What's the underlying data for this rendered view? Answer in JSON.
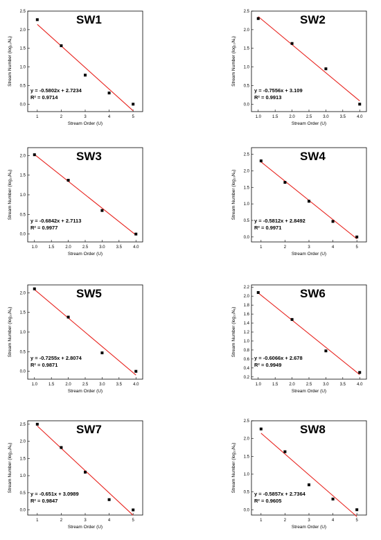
{
  "chart_data": [
    {
      "type": "scatter",
      "title": "SW1",
      "xlabel": "Stream Order (U)",
      "ylabel": "Stream Number (log₁₀Nᵤ)",
      "x": [
        1,
        2,
        3,
        4,
        5
      ],
      "y": [
        2.27,
        1.57,
        0.78,
        0.3,
        0.0
      ],
      "xticks": [
        "1",
        "2",
        "3",
        "4",
        "5"
      ],
      "yticks": [
        "0.0",
        "0.5",
        "1.0",
        "1.5",
        "2.0",
        "2.5"
      ],
      "xlim": [
        0.6,
        5.4
      ],
      "ylim": [
        -0.2,
        2.5
      ],
      "fit": {
        "slope": -0.5802,
        "intercept": 2.7234
      },
      "equation": "y = -0.5802x + 2.7234",
      "r2": "R² = 0.9714",
      "marker_color": "#000000",
      "line_color": "#e8231e"
    },
    {
      "type": "scatter",
      "title": "SW2",
      "xlabel": "Stream Order (U)",
      "ylabel": "Stream Number (log₁₀Nᵤ)",
      "x": [
        1,
        2,
        3,
        4
      ],
      "y": [
        2.3,
        1.63,
        0.95,
        0.0
      ],
      "xticks": [
        "1.0",
        "1.5",
        "2.0",
        "2.5",
        "3.0",
        "3.5",
        "4.0"
      ],
      "yticks": [
        "0.0",
        "0.5",
        "1.0",
        "1.5",
        "2.0",
        "2.5"
      ],
      "xlim": [
        0.8,
        4.2
      ],
      "ylim": [
        -0.2,
        2.5
      ],
      "fit": {
        "slope": -0.7556,
        "intercept": 3.109
      },
      "equation": "y = -0.7556x + 3.109",
      "r2": "R² = 0.9913",
      "marker_color": "#000000",
      "line_color": "#e8231e"
    },
    {
      "type": "scatter",
      "title": "SW3",
      "xlabel": "Stream Order (U)",
      "ylabel": "Stream Number (log₁₀Nᵤ)",
      "x": [
        1,
        2,
        3,
        4
      ],
      "y": [
        2.02,
        1.37,
        0.6,
        0.0
      ],
      "xticks": [
        "1.0",
        "1.5",
        "2.0",
        "2.5",
        "3.0",
        "3.5",
        "4.0"
      ],
      "yticks": [
        "0.0",
        "0.5",
        "1.0",
        "1.5",
        "2.0"
      ],
      "xlim": [
        0.8,
        4.2
      ],
      "ylim": [
        -0.2,
        2.2
      ],
      "fit": {
        "slope": -0.6842,
        "intercept": 2.7113
      },
      "equation": "y = -0.6842x + 2.7113",
      "r2": "R² = 0.9977",
      "marker_color": "#000000",
      "line_color": "#e8231e"
    },
    {
      "type": "scatter",
      "title": "SW4",
      "xlabel": "Stream Order (U)",
      "ylabel": "Stream Number (log₁₀Nᵤ)",
      "x": [
        1,
        2,
        3,
        4,
        5
      ],
      "y": [
        2.3,
        1.65,
        1.08,
        0.47,
        0.0
      ],
      "xticks": [
        "1",
        "2",
        "3",
        "4",
        "5"
      ],
      "yticks": [
        "0.0",
        "0.5",
        "1.0",
        "1.5",
        "2.0",
        "2.5"
      ],
      "xlim": [
        0.6,
        5.4
      ],
      "ylim": [
        -0.15,
        2.7
      ],
      "fit": {
        "slope": -0.5812,
        "intercept": 2.8492
      },
      "equation": "y = -0.5812x + 2.8492",
      "r2": "R² = 0.9971",
      "marker_color": "#000000",
      "line_color": "#e8231e"
    },
    {
      "type": "scatter",
      "title": "SW5",
      "xlabel": "Stream Order (U)",
      "ylabel": "Stream Number (log₁₀Nᵤ)",
      "x": [
        1,
        2,
        3,
        4
      ],
      "y": [
        2.1,
        1.38,
        0.47,
        0.0
      ],
      "xticks": [
        "1.0",
        "1.5",
        "2.0",
        "2.5",
        "3.0",
        "3.5",
        "4.0"
      ],
      "yticks": [
        "0.0",
        "0.5",
        "1.0",
        "1.5",
        "2.0"
      ],
      "xlim": [
        0.8,
        4.2
      ],
      "ylim": [
        -0.2,
        2.2
      ],
      "fit": {
        "slope": -0.7255,
        "intercept": 2.8074
      },
      "equation": "y = -0.7255x + 2.8074",
      "r2": "R² = 0.9871",
      "marker_color": "#000000",
      "line_color": "#e8231e"
    },
    {
      "type": "scatter",
      "title": "SW6",
      "xlabel": "Stream Order (U)",
      "ylabel": "Stream Number (log₁₀Nᵤ)",
      "x": [
        1,
        2,
        3,
        4
      ],
      "y": [
        2.08,
        1.48,
        0.78,
        0.3
      ],
      "xticks": [
        "1.0",
        "1.5",
        "2.0",
        "2.5",
        "3.0",
        "3.5",
        "4.0"
      ],
      "yticks": [
        "0.2",
        "0.4",
        "0.6",
        "0.8",
        "1.0",
        "1.2",
        "1.4",
        "1.6",
        "1.8",
        "2.0",
        "2.2"
      ],
      "xlim": [
        0.8,
        4.2
      ],
      "ylim": [
        0.15,
        2.25
      ],
      "fit": {
        "slope": -0.6066,
        "intercept": 2.678
      },
      "equation": "y = -0.6066x + 2.678",
      "r2": "R² = 0.9949",
      "marker_color": "#000000",
      "line_color": "#e8231e"
    },
    {
      "type": "scatter",
      "title": "SW7",
      "xlabel": "Stream Order (U)",
      "ylabel": "Stream Number (log₁₀Nᵤ)",
      "x": [
        1,
        2,
        3,
        4,
        5
      ],
      "y": [
        2.5,
        1.82,
        1.1,
        0.3,
        0.0
      ],
      "xticks": [
        "1",
        "2",
        "3",
        "4",
        "5"
      ],
      "yticks": [
        "0.0",
        "0.5",
        "1.0",
        "1.5",
        "2.0",
        "2.5"
      ],
      "xlim": [
        0.6,
        5.4
      ],
      "ylim": [
        -0.15,
        2.6
      ],
      "fit": {
        "slope": -0.651,
        "intercept": 3.0989
      },
      "equation": "y = -0.651x + 3.0989",
      "r2": "R² = 0.9847",
      "marker_color": "#000000",
      "line_color": "#e8231e"
    },
    {
      "type": "scatter",
      "title": "SW8",
      "xlabel": "Stream Order (U)",
      "ylabel": "Stream Number (log₁₀Nᵤ)",
      "x": [
        1,
        2,
        3,
        4,
        5
      ],
      "y": [
        2.27,
        1.63,
        0.7,
        0.3,
        0.0
      ],
      "xticks": [
        "1",
        "2",
        "3",
        "4",
        "5"
      ],
      "yticks": [
        "0.0",
        "0.5",
        "1.0",
        "1.5",
        "2.0",
        "2.5"
      ],
      "xlim": [
        0.6,
        5.4
      ],
      "ylim": [
        -0.15,
        2.5
      ],
      "fit": {
        "slope": -0.5857,
        "intercept": 2.7364
      },
      "equation": "y = -0.5857x + 2.7364",
      "r2": "R² = 0.9605",
      "marker_color": "#000000",
      "line_color": "#e8231e"
    }
  ]
}
